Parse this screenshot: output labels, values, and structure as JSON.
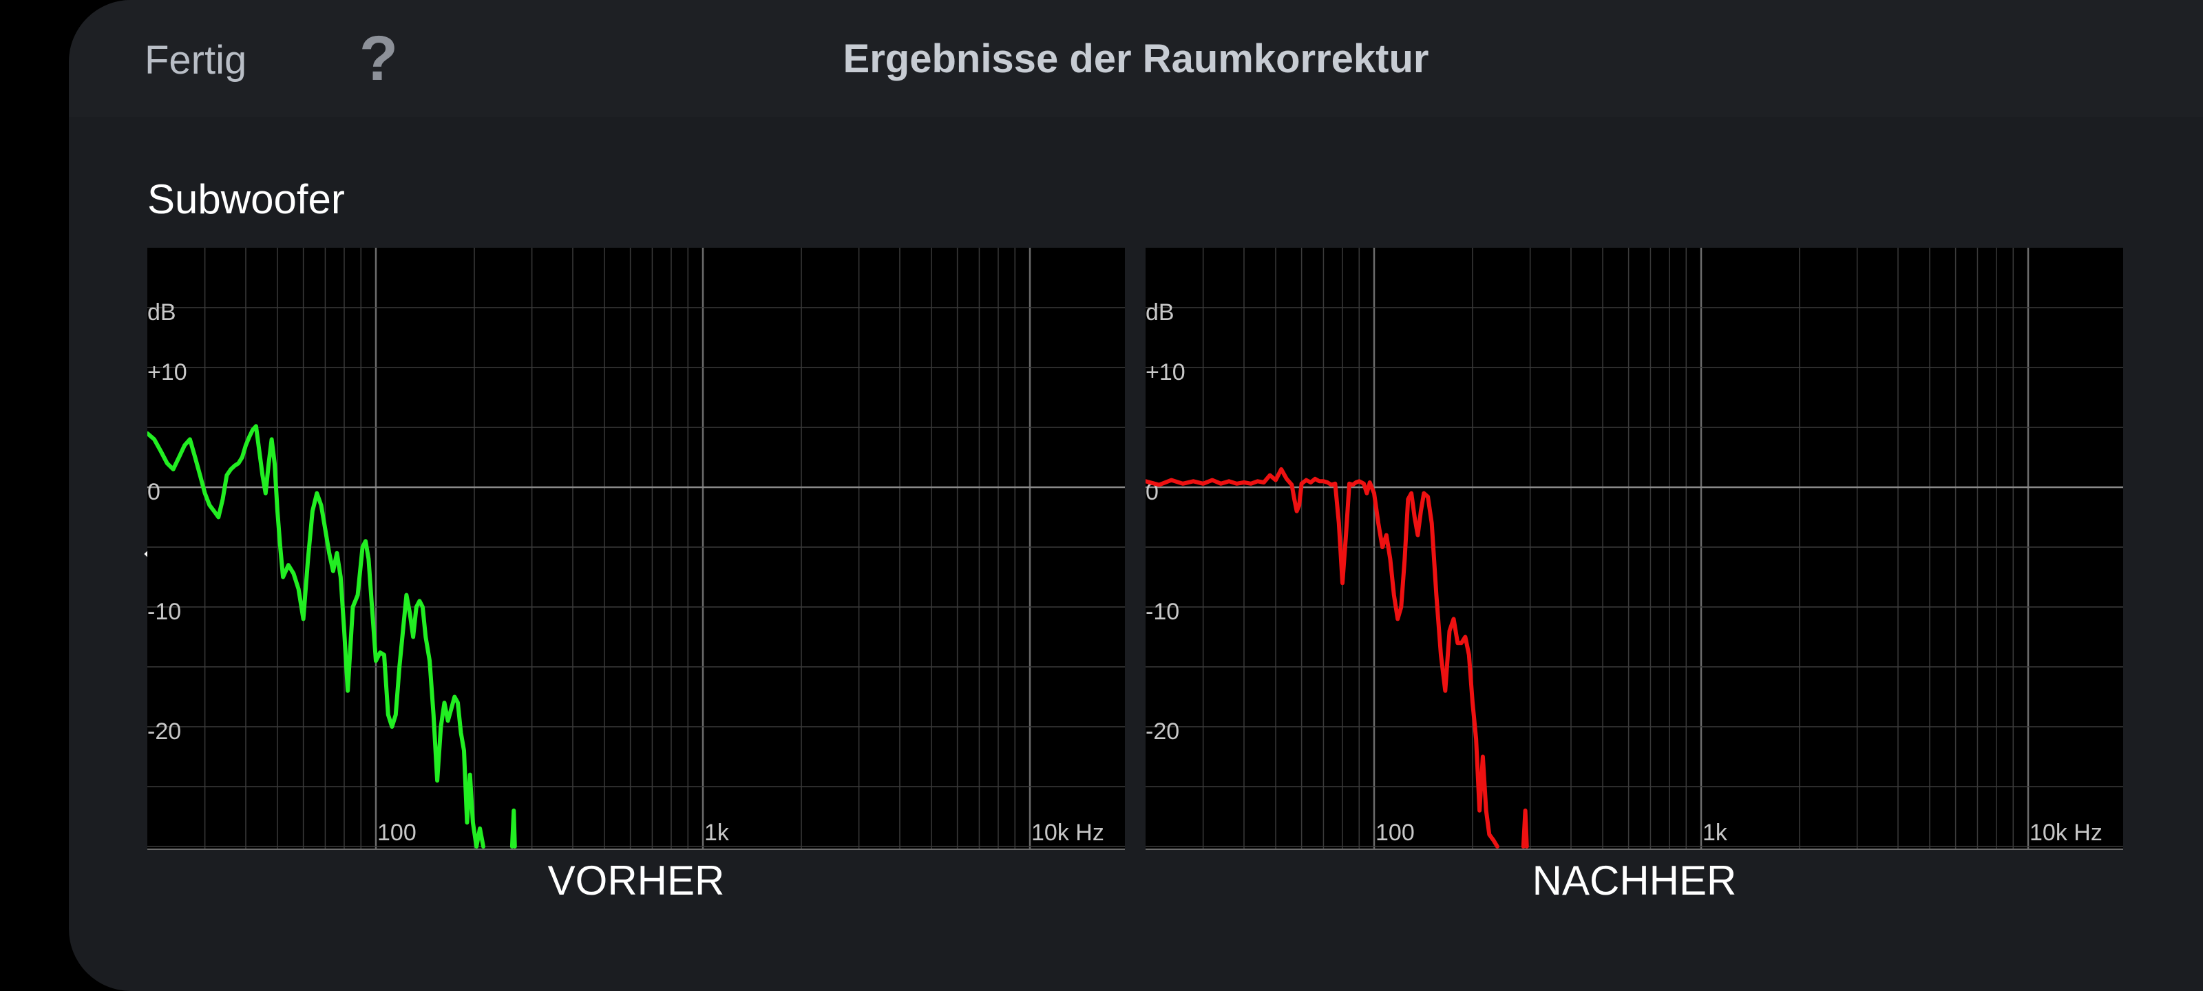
{
  "header": {
    "done_label": "Fertig",
    "help_label": "?",
    "title": "Ergebnisse der Raumkorrektur"
  },
  "section": {
    "label": "Subwoofer"
  },
  "colors": {
    "before_curve": "#22ee22",
    "after_curve": "#ee1111",
    "background": "#1b1d21"
  },
  "icons": {
    "back": "chevron-left-icon",
    "help": "question-mark-icon"
  },
  "chart_data": [
    {
      "type": "line",
      "caption": "VORHER",
      "x_scale": "log",
      "xlim": [
        20,
        20000
      ],
      "ylim": [
        -30,
        20
      ],
      "y_ticks": [
        {
          "value": 15,
          "label": "dB"
        },
        {
          "value": 10,
          "label": "+10"
        },
        {
          "value": 0,
          "label": "0"
        },
        {
          "value": -10,
          "label": "-10"
        },
        {
          "value": -20,
          "label": "-20"
        }
      ],
      "x_ticks": [
        {
          "value": 100,
          "label": "100"
        },
        {
          "value": 1000,
          "label": "1k"
        },
        {
          "value": 10000,
          "label": "10k Hz"
        }
      ],
      "grid": true,
      "series": [
        {
          "points": [
            [
              20,
              4.5
            ],
            [
              21,
              4
            ],
            [
              22,
              3
            ],
            [
              23,
              2
            ],
            [
              24,
              1.5
            ],
            [
              25,
              2.5
            ],
            [
              26,
              3.5
            ],
            [
              27,
              4
            ],
            [
              28,
              2.5
            ],
            [
              29,
              1
            ],
            [
              30,
              -0.5
            ],
            [
              31,
              -1.5
            ],
            [
              32,
              -2
            ],
            [
              33,
              -2.5
            ],
            [
              34,
              -1
            ],
            [
              35,
              1
            ],
            [
              36,
              1.5
            ],
            [
              37,
              1.8
            ],
            [
              38,
              2
            ],
            [
              39,
              2.5
            ],
            [
              40,
              3.5
            ],
            [
              41,
              4.2
            ],
            [
              42,
              4.8
            ],
            [
              43,
              5.1
            ],
            [
              44,
              3
            ],
            [
              45,
              1
            ],
            [
              46,
              -0.5
            ],
            [
              47,
              2
            ],
            [
              48,
              4
            ],
            [
              49,
              2
            ],
            [
              50,
              -2
            ],
            [
              51,
              -5
            ],
            [
              52,
              -7.5
            ],
            [
              54,
              -6.5
            ],
            [
              56,
              -7.2
            ],
            [
              58,
              -8.5
            ],
            [
              60,
              -11
            ],
            [
              62,
              -6
            ],
            [
              64,
              -2
            ],
            [
              66,
              -0.5
            ],
            [
              68,
              -1.5
            ],
            [
              70,
              -3.5
            ],
            [
              72,
              -5.5
            ],
            [
              74,
              -7
            ],
            [
              76,
              -5.5
            ],
            [
              78,
              -7.5
            ],
            [
              80,
              -12
            ],
            [
              82,
              -17
            ],
            [
              85,
              -10
            ],
            [
              88,
              -9
            ],
            [
              91,
              -5
            ],
            [
              93,
              -4.5
            ],
            [
              95,
              -6
            ],
            [
              97,
              -9.5
            ],
            [
              100,
              -14.5
            ],
            [
              103,
              -13.8
            ],
            [
              106,
              -14
            ],
            [
              109,
              -19
            ],
            [
              112,
              -20
            ],
            [
              115,
              -19
            ],
            [
              118,
              -15
            ],
            [
              121,
              -12
            ],
            [
              124,
              -9
            ],
            [
              127,
              -10.5
            ],
            [
              130,
              -12.5
            ],
            [
              133,
              -10
            ],
            [
              136,
              -9.5
            ],
            [
              139,
              -10
            ],
            [
              142,
              -12.5
            ],
            [
              146,
              -14.5
            ],
            [
              150,
              -19
            ],
            [
              154,
              -24.5
            ],
            [
              158,
              -20
            ],
            [
              162,
              -18
            ],
            [
              166,
              -19.5
            ],
            [
              170,
              -18.5
            ],
            [
              174,
              -17.5
            ],
            [
              178,
              -18
            ],
            [
              182,
              -20.5
            ],
            [
              186,
              -22
            ],
            [
              190,
              -28
            ],
            [
              194,
              -24
            ],
            [
              198,
              -28
            ],
            [
              203,
              -30
            ],
            [
              208,
              -28.5
            ],
            [
              213,
              -30
            ]
          ]
        },
        {
          "points": [
            [
              261,
              -30
            ],
            [
              264,
              -27
            ],
            [
              266,
              -30
            ]
          ]
        }
      ]
    },
    {
      "type": "line",
      "caption": "NACHHER",
      "x_scale": "log",
      "xlim": [
        20,
        20000
      ],
      "ylim": [
        -30,
        20
      ],
      "y_ticks": [
        {
          "value": 15,
          "label": "dB"
        },
        {
          "value": 10,
          "label": "+10"
        },
        {
          "value": 0,
          "label": "0"
        },
        {
          "value": -10,
          "label": "-10"
        },
        {
          "value": -20,
          "label": "-20"
        }
      ],
      "x_ticks": [
        {
          "value": 100,
          "label": "100"
        },
        {
          "value": 1000,
          "label": "1k"
        },
        {
          "value": 10000,
          "label": "10k Hz"
        }
      ],
      "grid": true,
      "series": [
        {
          "points": [
            [
              20,
              0.5
            ],
            [
              22,
              0.2
            ],
            [
              24,
              0.6
            ],
            [
              26,
              0.3
            ],
            [
              28,
              0.5
            ],
            [
              30,
              0.3
            ],
            [
              32,
              0.6
            ],
            [
              34,
              0.3
            ],
            [
              36,
              0.5
            ],
            [
              38,
              0.3
            ],
            [
              40,
              0.4
            ],
            [
              42,
              0.3
            ],
            [
              44,
              0.5
            ],
            [
              46,
              0.4
            ],
            [
              48,
              1.0
            ],
            [
              50,
              0.6
            ],
            [
              52,
              1.5
            ],
            [
              54,
              0.7
            ],
            [
              56,
              0.2
            ],
            [
              57,
              -1
            ],
            [
              58,
              -2
            ],
            [
              59,
              -1.5
            ],
            [
              60,
              0.3
            ],
            [
              62,
              0.6
            ],
            [
              64,
              0.4
            ],
            [
              66,
              0.7
            ],
            [
              68,
              0.5
            ],
            [
              70,
              0.5
            ],
            [
              72,
              0.4
            ],
            [
              74,
              0.2
            ],
            [
              76,
              0.3
            ],
            [
              78,
              -3
            ],
            [
              80,
              -8
            ],
            [
              82,
              -4
            ],
            [
              84,
              0.3
            ],
            [
              86,
              0.2
            ],
            [
              88,
              0.4
            ],
            [
              90,
              0.5
            ],
            [
              93,
              0.3
            ],
            [
              95,
              -0.5
            ],
            [
              97,
              0.4
            ],
            [
              100,
              -0.5
            ],
            [
              103,
              -3
            ],
            [
              106,
              -5
            ],
            [
              109,
              -4
            ],
            [
              112,
              -6
            ],
            [
              115,
              -9
            ],
            [
              118,
              -11
            ],
            [
              121,
              -10
            ],
            [
              124,
              -6
            ],
            [
              127,
              -1
            ],
            [
              130,
              -0.5
            ],
            [
              133,
              -2.5
            ],
            [
              136,
              -4
            ],
            [
              139,
              -2
            ],
            [
              142,
              -0.5
            ],
            [
              146,
              -0.8
            ],
            [
              150,
              -3
            ],
            [
              155,
              -9
            ],
            [
              160,
              -14
            ],
            [
              165,
              -17
            ],
            [
              170,
              -12
            ],
            [
              175,
              -11
            ],
            [
              180,
              -13
            ],
            [
              185,
              -13
            ],
            [
              190,
              -12.5
            ],
            [
              195,
              -14
            ],
            [
              200,
              -18
            ],
            [
              205,
              -21
            ],
            [
              210,
              -27
            ],
            [
              215,
              -22.5
            ],
            [
              220,
              -27
            ],
            [
              225,
              -29
            ],
            [
              232,
              -29.5
            ],
            [
              238,
              -30
            ]
          ]
        },
        {
          "points": [
            [
              286,
              -30
            ],
            [
              290,
              -27
            ],
            [
              293,
              -30
            ]
          ]
        }
      ]
    }
  ]
}
